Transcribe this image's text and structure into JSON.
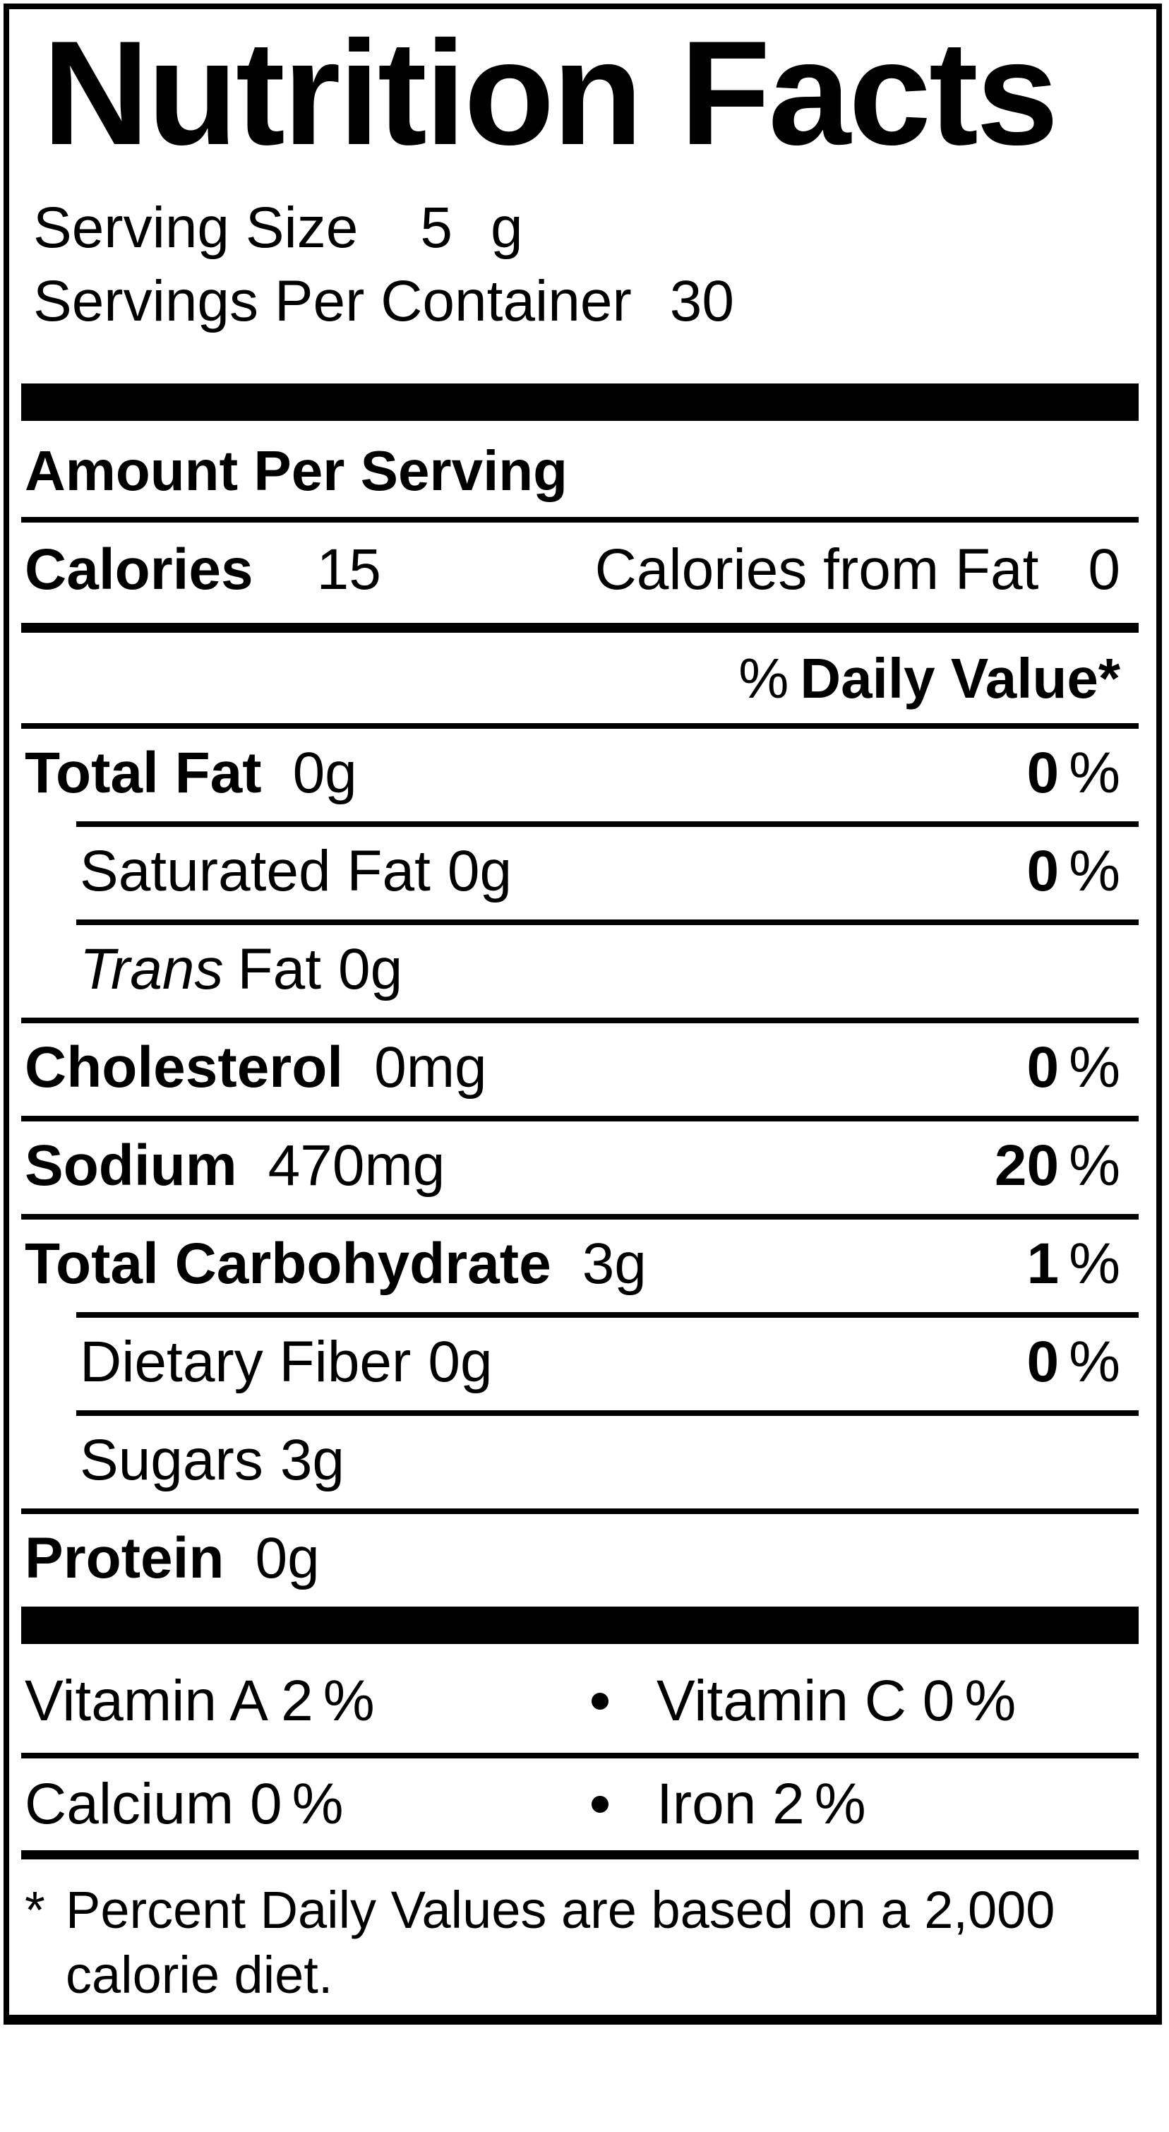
{
  "label": {
    "title": "Nutrition Facts",
    "serving_size": {
      "label": "Serving Size",
      "value": "5",
      "unit": "g"
    },
    "servings_per_container": {
      "label": "Servings Per Container",
      "value": "30"
    },
    "amount_per_serving": "Amount Per Serving",
    "calories": {
      "label": "Calories",
      "value": "15",
      "from_fat_label": "Calories from Fat",
      "from_fat_value": "0"
    },
    "daily_value_header": {
      "percent_sign": "%",
      "text": "Daily Value*"
    },
    "percent_sign": "%",
    "nutrients": [
      {
        "name": "Total Fat",
        "amount": "0g",
        "dv": "0",
        "bold": true,
        "indent": false,
        "italic": false,
        "suffix": ""
      },
      {
        "name": "Saturated Fat",
        "amount": "0g",
        "dv": "0",
        "bold": false,
        "indent": true,
        "italic": false,
        "suffix": ""
      },
      {
        "name": "Trans",
        "amount": "0g",
        "dv": null,
        "bold": false,
        "indent": true,
        "italic": true,
        "suffix": "Fat"
      },
      {
        "name": "Cholesterol",
        "amount": "0mg",
        "dv": "0",
        "bold": true,
        "indent": false,
        "italic": false,
        "suffix": ""
      },
      {
        "name": "Sodium",
        "amount": "470mg",
        "dv": "20",
        "bold": true,
        "indent": false,
        "italic": false,
        "suffix": ""
      },
      {
        "name": "Total Carbohydrate",
        "amount": "3g",
        "dv": "1",
        "bold": true,
        "indent": false,
        "italic": false,
        "suffix": ""
      },
      {
        "name": "Dietary Fiber",
        "amount": "0g",
        "dv": "0",
        "bold": false,
        "indent": true,
        "italic": false,
        "suffix": ""
      },
      {
        "name": "Sugars",
        "amount": "3g",
        "dv": null,
        "bold": false,
        "indent": true,
        "italic": false,
        "suffix": ""
      },
      {
        "name": "Protein",
        "amount": "0g",
        "dv": null,
        "bold": true,
        "indent": false,
        "italic": false,
        "suffix": ""
      }
    ],
    "vitamin_rows": [
      {
        "left": {
          "name": "Vitamin A",
          "value": "2"
        },
        "right": {
          "name": "Vitamin C",
          "value": "0"
        }
      },
      {
        "left": {
          "name": "Calcium",
          "value": "0"
        },
        "right": {
          "name": "Iron",
          "value": "2"
        }
      }
    ],
    "footnote": {
      "marker": "*",
      "text": "Percent Daily Values are based on a 2,000 calorie diet."
    }
  },
  "colors": {
    "ink": "#000000",
    "background": "#ffffff"
  }
}
